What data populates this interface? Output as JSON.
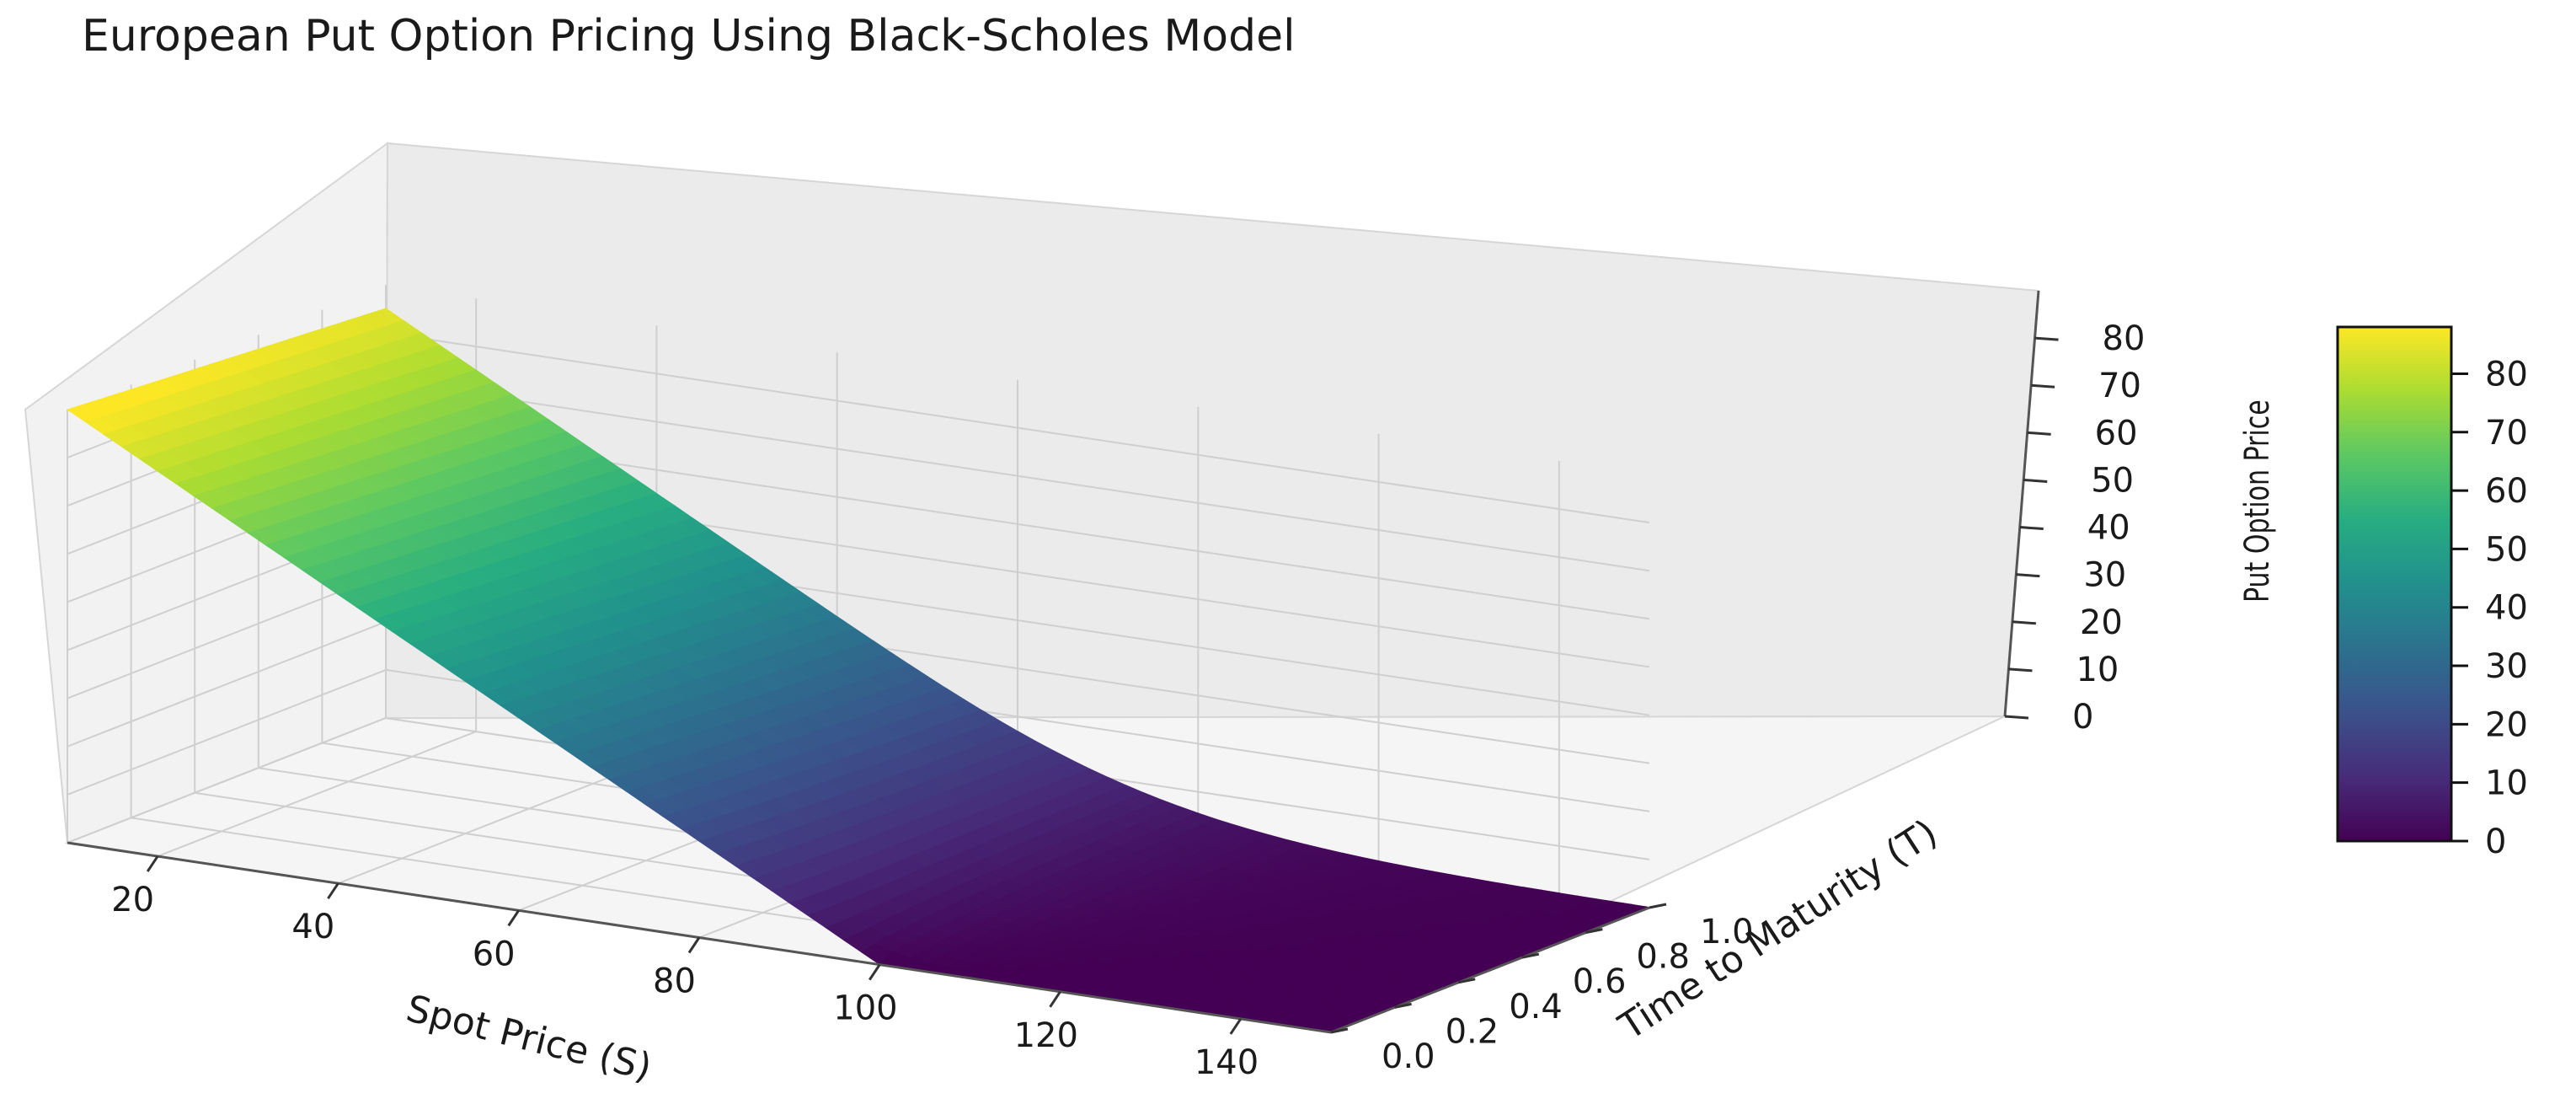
{
  "chart_data": {
    "type": "surface3d",
    "title": "European Put Option Pricing Using Black-Scholes Model",
    "xlabel": "Spot Price (S)",
    "ylabel": "Time to Maturity (T)",
    "zlabel": "Put Option Price",
    "xlim": [
      10,
      150
    ],
    "ylim": [
      0.0,
      1.0
    ],
    "zlim": [
      0,
      90
    ],
    "x_ticks": [
      20,
      40,
      60,
      80,
      100,
      120,
      140
    ],
    "y_ticks": [
      "0.0",
      "0.2",
      "0.4",
      "0.6",
      "0.8",
      "1.0"
    ],
    "z_ticks": [
      0,
      10,
      20,
      30,
      40,
      50,
      60,
      70,
      80
    ],
    "colorbar": {
      "ticks": [
        0,
        10,
        20,
        30,
        40,
        50,
        60,
        70,
        80
      ],
      "range": [
        0,
        88
      ]
    },
    "colormap": "viridis",
    "grid": true,
    "surface_samples": {
      "T_values": [
        0.0,
        1.0
      ],
      "S_values": [
        10,
        30,
        50,
        70,
        90,
        100,
        110,
        130,
        150
      ],
      "price_at_T_0": [
        90,
        70,
        50,
        30,
        10,
        0,
        0,
        0,
        0
      ],
      "price_at_T_1": [
        85,
        65,
        46,
        27,
        12,
        7,
        4,
        1.5,
        0.5
      ]
    }
  }
}
